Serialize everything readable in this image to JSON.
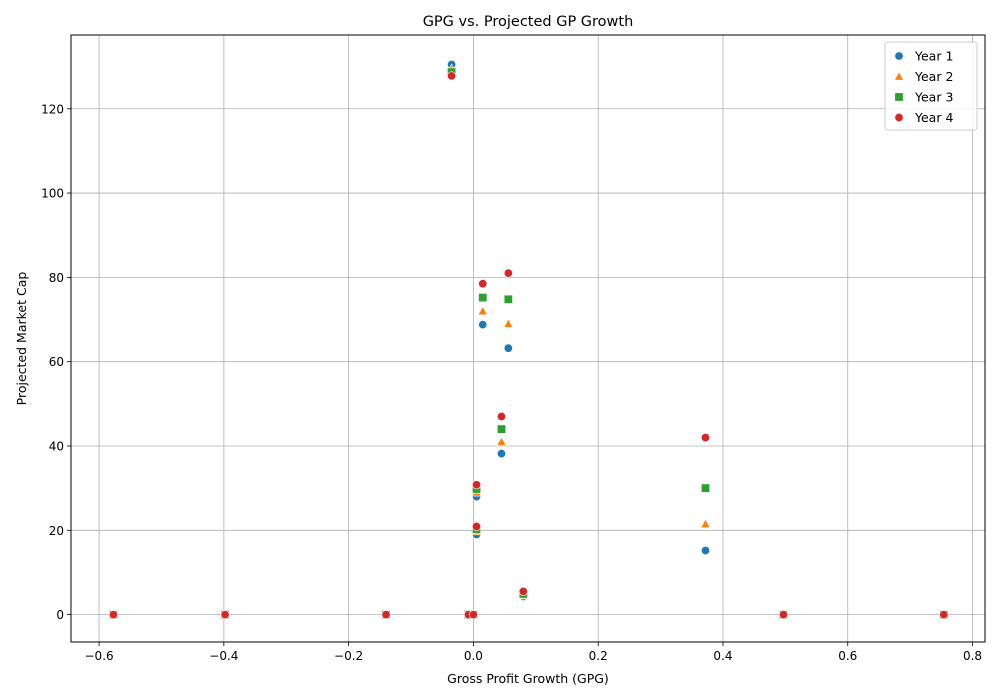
{
  "chart_data": {
    "type": "scatter",
    "title": "GPG vs. Projected GP Growth",
    "xlabel": "Gross Profit Growth (GPG)",
    "ylabel": "Projected Market Cap",
    "xlim": [
      -0.645,
      0.82
    ],
    "ylim": [
      -6.5,
      137.5
    ],
    "xticks": [
      -0.6,
      -0.4,
      -0.2,
      0.0,
      0.2,
      0.4,
      0.6,
      0.8
    ],
    "xtick_labels": [
      "−0.6",
      "−0.4",
      "−0.2",
      "0.0",
      "0.2",
      "0.4",
      "0.6",
      "0.8"
    ],
    "yticks": [
      0,
      20,
      40,
      60,
      80,
      100,
      120
    ],
    "ytick_labels": [
      "0",
      "20",
      "40",
      "60",
      "80",
      "100",
      "120"
    ],
    "grid": true,
    "legend_position": "top-right",
    "series": [
      {
        "name": "Year 1",
        "color": "#1f77b4",
        "marker": "circle",
        "points": [
          [
            -0.035,
            130.5
          ],
          [
            0.015,
            68.8
          ],
          [
            0.056,
            63.2
          ],
          [
            0.045,
            38.2
          ],
          [
            0.005,
            28.0
          ],
          [
            0.005,
            19.0
          ],
          [
            0.372,
            15.2
          ],
          [
            0.08,
            4.3
          ],
          [
            -0.577,
            0.0
          ],
          [
            -0.398,
            0.0
          ],
          [
            -0.14,
            0.0
          ],
          [
            -0.008,
            0.0
          ],
          [
            0.0,
            0.0
          ],
          [
            0.497,
            0.0
          ],
          [
            0.754,
            0.0
          ]
        ]
      },
      {
        "name": "Year 2",
        "color": "#ff7f0e",
        "marker": "triangle",
        "points": [
          [
            -0.035,
            129.5
          ],
          [
            0.015,
            72.0
          ],
          [
            0.056,
            69.0
          ],
          [
            0.045,
            41.0
          ],
          [
            0.005,
            29.0
          ],
          [
            0.005,
            19.8
          ],
          [
            0.372,
            21.5
          ],
          [
            0.08,
            4.6
          ],
          [
            -0.577,
            0.0
          ],
          [
            -0.398,
            0.0
          ],
          [
            -0.14,
            0.0
          ],
          [
            -0.008,
            0.0
          ],
          [
            0.0,
            0.0
          ],
          [
            0.497,
            0.0
          ],
          [
            0.754,
            0.0
          ]
        ]
      },
      {
        "name": "Year 3",
        "color": "#2ca02c",
        "marker": "square",
        "points": [
          [
            -0.035,
            128.7
          ],
          [
            0.015,
            75.2
          ],
          [
            0.056,
            74.8
          ],
          [
            0.045,
            44.0
          ],
          [
            0.005,
            29.8
          ],
          [
            0.005,
            20.3
          ],
          [
            0.372,
            30.0
          ],
          [
            0.08,
            4.9
          ],
          [
            -0.577,
            0.0
          ],
          [
            -0.398,
            0.0
          ],
          [
            -0.14,
            0.0
          ],
          [
            -0.008,
            0.0
          ],
          [
            0.0,
            0.0
          ],
          [
            0.497,
            0.0
          ],
          [
            0.754,
            0.0
          ]
        ]
      },
      {
        "name": "Year 4",
        "color": "#d62728",
        "marker": "circle",
        "points": [
          [
            -0.035,
            127.8
          ],
          [
            0.015,
            78.5
          ],
          [
            0.056,
            81.0
          ],
          [
            0.045,
            47.0
          ],
          [
            0.005,
            30.8
          ],
          [
            0.005,
            20.9
          ],
          [
            0.372,
            42.0
          ],
          [
            0.08,
            5.5
          ],
          [
            -0.577,
            0.0
          ],
          [
            -0.398,
            0.0
          ],
          [
            -0.14,
            0.0
          ],
          [
            -0.008,
            0.0
          ],
          [
            0.0,
            0.0
          ],
          [
            0.497,
            0.0
          ],
          [
            0.754,
            0.0
          ]
        ]
      }
    ]
  }
}
